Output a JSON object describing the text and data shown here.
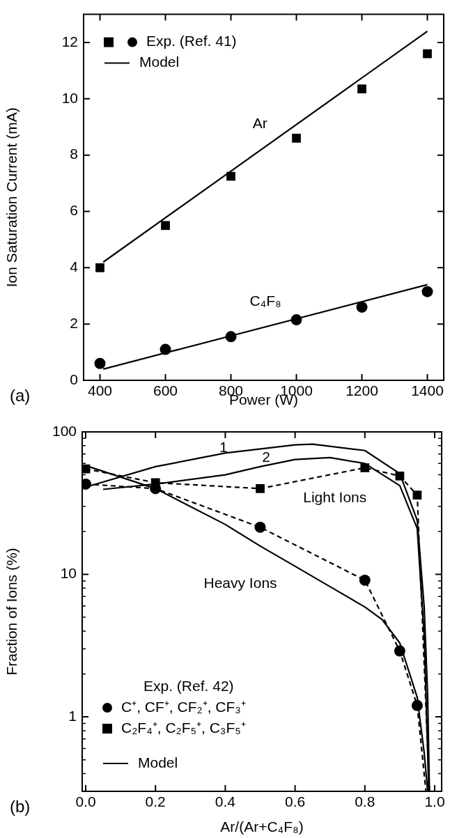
{
  "chart_data": [
    {
      "type": "scatter",
      "xlabel": "Power (W)",
      "ylabel": "Ion Saturation Current (mA)",
      "xlim": [
        350,
        1450
      ],
      "xticks": [
        400,
        600,
        800,
        1000,
        1200,
        1400
      ],
      "ylim": [
        0,
        13
      ],
      "yticks": [
        0,
        2,
        4,
        6,
        8,
        10,
        12
      ],
      "grid": false,
      "legend": "top left",
      "annotations": [
        "Ar",
        "C₄F₈",
        "(a)"
      ],
      "series": [
        {
          "type": "scatter",
          "marker": "square",
          "color": "#000000",
          "x": [
            400,
            600,
            800,
            1000,
            1200,
            1400
          ],
          "values": [
            4.0,
            5.5,
            7.25,
            8.6,
            10.35,
            11.6
          ]
        },
        {
          "name": "Exp. (Ref. 41)",
          "type": "scatter",
          "marker": "circle",
          "color": "#000000",
          "x": [
            400,
            600,
            800,
            1000,
            1200,
            1400
          ],
          "values": [
            0.6,
            1.1,
            1.55,
            2.15,
            2.6,
            3.15
          ]
        },
        {
          "name": "Model",
          "type": "line",
          "marker": "none",
          "line_style": "solid",
          "color": "#000000",
          "x": [
            410,
            1400
          ],
          "values": [
            4.2,
            12.4
          ]
        },
        {
          "type": "line",
          "marker": "none",
          "line_style": "solid",
          "color": "#000000",
          "x": [
            410,
            1400
          ],
          "values": [
            0.4,
            3.4
          ]
        }
      ]
    },
    {
      "type": "scatter",
      "xlabel": "Ar/(Ar+C₄F₈)",
      "ylabel": "Fraction of Ions (%)",
      "log": "y",
      "xlim": [
        -0.01,
        1.02
      ],
      "xticks": [
        {
          "value": 0,
          "label": "0.0"
        },
        {
          "value": 0.2,
          "label": "0.2"
        },
        {
          "value": 0.4,
          "label": "0.4"
        },
        {
          "value": 0.6,
          "label": "0.6"
        },
        {
          "value": 0.8,
          "label": "0.8"
        },
        {
          "value": 1,
          "label": "1.0"
        }
      ],
      "ylim": [
        0.3,
        100
      ],
      "yticks": [
        1,
        10,
        100
      ],
      "grid": false,
      "legend": "bottom left",
      "legend_title": "Exp. (Ref. 42)",
      "annotations": [
        "1",
        "2",
        "Light Ions",
        "Heavy Ions",
        "(b)"
      ],
      "series": [
        {
          "name": "C⁺, CF⁺, CF₂⁺, CF₃⁺",
          "type": "scatter",
          "marker": "circle",
          "color": "#000000",
          "x": [
            0,
            0.2,
            0.5,
            0.8,
            0.9,
            0.95
          ],
          "values": [
            43,
            40,
            21.4,
            9.1,
            2.9,
            1.2
          ]
        },
        {
          "name": "C₂F₄⁺, C₂F₅⁺, C₃F₅⁺",
          "type": "scatter",
          "marker": "square",
          "color": "#000000",
          "x": [
            0,
            0.2,
            0.5,
            0.8,
            0.9,
            0.95
          ],
          "values": [
            55,
            44,
            40,
            56,
            49,
            36
          ]
        },
        {
          "name": "Model",
          "type": "line",
          "marker": "none",
          "line_style": "solid",
          "color": "#000000",
          "x": [
            0,
            0.2,
            0.4,
            0.6,
            0.65,
            0.8,
            0.9,
            0.95,
            0.97,
            0.98,
            0.985
          ],
          "values": [
            41,
            57,
            71,
            81,
            82,
            74,
            51,
            24,
            5.9,
            1.4,
            0.3
          ]
        },
        {
          "type": "line",
          "marker": "none",
          "line_style": "solid",
          "color": "#000000",
          "x": [
            0.05,
            0.2,
            0.4,
            0.5,
            0.6,
            0.7,
            0.8,
            0.9,
            0.95,
            0.97,
            0.98,
            0.983
          ],
          "values": [
            39.5,
            43,
            50,
            57,
            64,
            66,
            60,
            42,
            21,
            3.7,
            0.56,
            0.3
          ]
        },
        {
          "type": "line",
          "marker": "none",
          "line_style": "solid",
          "color": "#000000",
          "x": [
            0,
            0.2,
            0.4,
            0.5,
            0.6,
            0.7,
            0.8,
            0.85,
            0.9,
            0.95,
            0.97,
            0.98
          ],
          "values": [
            58,
            40,
            22.4,
            15.8,
            11.4,
            8.2,
            5.9,
            4.8,
            3.3,
            1.37,
            0.56,
            0.3
          ]
        },
        {
          "type": "line",
          "marker": "none",
          "line_style": "dashed",
          "color": "#000000",
          "x": [
            0,
            0.2,
            0.5,
            0.8,
            0.9,
            0.95,
            0.975
          ],
          "values": [
            43,
            40,
            21.4,
            9.1,
            2.9,
            1.2,
            0.3
          ]
        },
        {
          "type": "line",
          "marker": "none",
          "line_style": "dashed",
          "color": "#000000",
          "x": [
            0,
            0.2,
            0.5,
            0.8,
            0.9,
            0.95,
            0.985
          ],
          "values": [
            55,
            44,
            40,
            56,
            49,
            36,
            0.3
          ]
        }
      ]
    }
  ]
}
